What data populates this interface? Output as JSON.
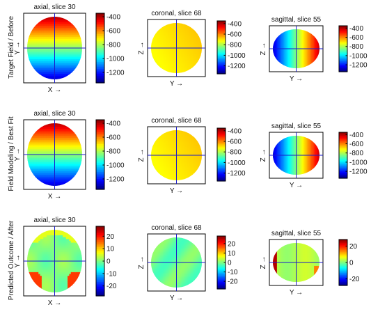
{
  "rows": [
    {
      "label": "Target Field / Before"
    },
    {
      "label": "Field Modeling / Best Fit"
    },
    {
      "label": "Predicted Outcome / After"
    }
  ],
  "chart_data": [
    {
      "type": "heatmap",
      "title": "axial, slice 30",
      "xlabel": "X →",
      "ylabel": "Y →",
      "pattern": "vertical",
      "clim": [
        -1350,
        -350
      ],
      "colorbar_ticks": [
        "-400",
        "-600",
        "-800",
        "-1000",
        "-1200"
      ],
      "colorbar_values": [
        -400,
        -600,
        -800,
        -1000,
        -1200
      ],
      "colormap": "jet"
    },
    {
      "type": "heatmap",
      "title": "coronal, slice 68",
      "xlabel": "Y →",
      "ylabel": "Z →",
      "pattern": "flat-yellow",
      "clim": [
        -1350,
        -350
      ],
      "colorbar_ticks": [
        "-400",
        "-600",
        "-800",
        "-1000",
        "-1200"
      ],
      "colorbar_values": [
        -400,
        -600,
        -800,
        -1000,
        -1200
      ],
      "colormap": "jet"
    },
    {
      "type": "heatmap",
      "title": "sagittal, slice 55",
      "xlabel": "Y →",
      "ylabel": "Z →",
      "pattern": "horizontal",
      "clim": [
        -1350,
        -350
      ],
      "colorbar_ticks": [
        "-400",
        "-600",
        "-800",
        "-1000",
        "-1200"
      ],
      "colorbar_values": [
        -400,
        -600,
        -800,
        -1000,
        -1200
      ],
      "colormap": "jet"
    },
    {
      "type": "heatmap",
      "title": "axial, slice 30",
      "xlabel": "X →",
      "ylabel": "Y →",
      "pattern": "vertical",
      "clim": [
        -1350,
        -350
      ],
      "colorbar_ticks": [
        "-400",
        "-600",
        "-800",
        "-1000",
        "-1200"
      ],
      "colorbar_values": [
        -400,
        -600,
        -800,
        -1000,
        -1200
      ],
      "colormap": "jet"
    },
    {
      "type": "heatmap",
      "title": "coronal, slice 68",
      "xlabel": "Y →",
      "ylabel": "Z →",
      "pattern": "flat-yellow",
      "clim": [
        -1350,
        -350
      ],
      "colorbar_ticks": [
        "-400",
        "-600",
        "-800",
        "-1000",
        "-1200"
      ],
      "colorbar_values": [
        -400,
        -600,
        -800,
        -1000,
        -1200
      ],
      "colormap": "jet"
    },
    {
      "type": "heatmap",
      "title": "sagittal, slice 55",
      "xlabel": "Y →",
      "ylabel": "Z →",
      "pattern": "horizontal",
      "clim": [
        -1350,
        -350
      ],
      "colorbar_ticks": [
        "-400",
        "-600",
        "-800",
        "-1000",
        "-1200"
      ],
      "colorbar_values": [
        -400,
        -600,
        -800,
        -1000,
        -1200
      ],
      "colormap": "jet"
    },
    {
      "type": "heatmap",
      "title": "axial, slice 30",
      "xlabel": "X →",
      "ylabel": "Y →",
      "pattern": "residual",
      "clim": [
        -28,
        28
      ],
      "colorbar_ticks": [
        "20",
        "10",
        "0",
        "-10",
        "-20"
      ],
      "colorbar_values": [
        20,
        10,
        0,
        -10,
        -20
      ],
      "colormap": "jet"
    },
    {
      "type": "heatmap",
      "title": "coronal, slice 68",
      "xlabel": "Y →",
      "ylabel": "Z →",
      "pattern": "residual-flat",
      "clim": [
        -28,
        28
      ],
      "colorbar_ticks": [
        "20",
        "10",
        "0",
        "-10",
        "-20"
      ],
      "colorbar_values": [
        20,
        10,
        0,
        -10,
        -20
      ],
      "colormap": "jet"
    },
    {
      "type": "heatmap",
      "title": "sagittal, slice 55",
      "xlabel": "Y →",
      "ylabel": "Z →",
      "pattern": "residual-edge",
      "clim": [
        -28,
        28
      ],
      "colorbar_ticks": [
        "20",
        "0",
        "-20"
      ],
      "colorbar_values": [
        20,
        0,
        -20
      ],
      "colormap": "jet"
    }
  ]
}
